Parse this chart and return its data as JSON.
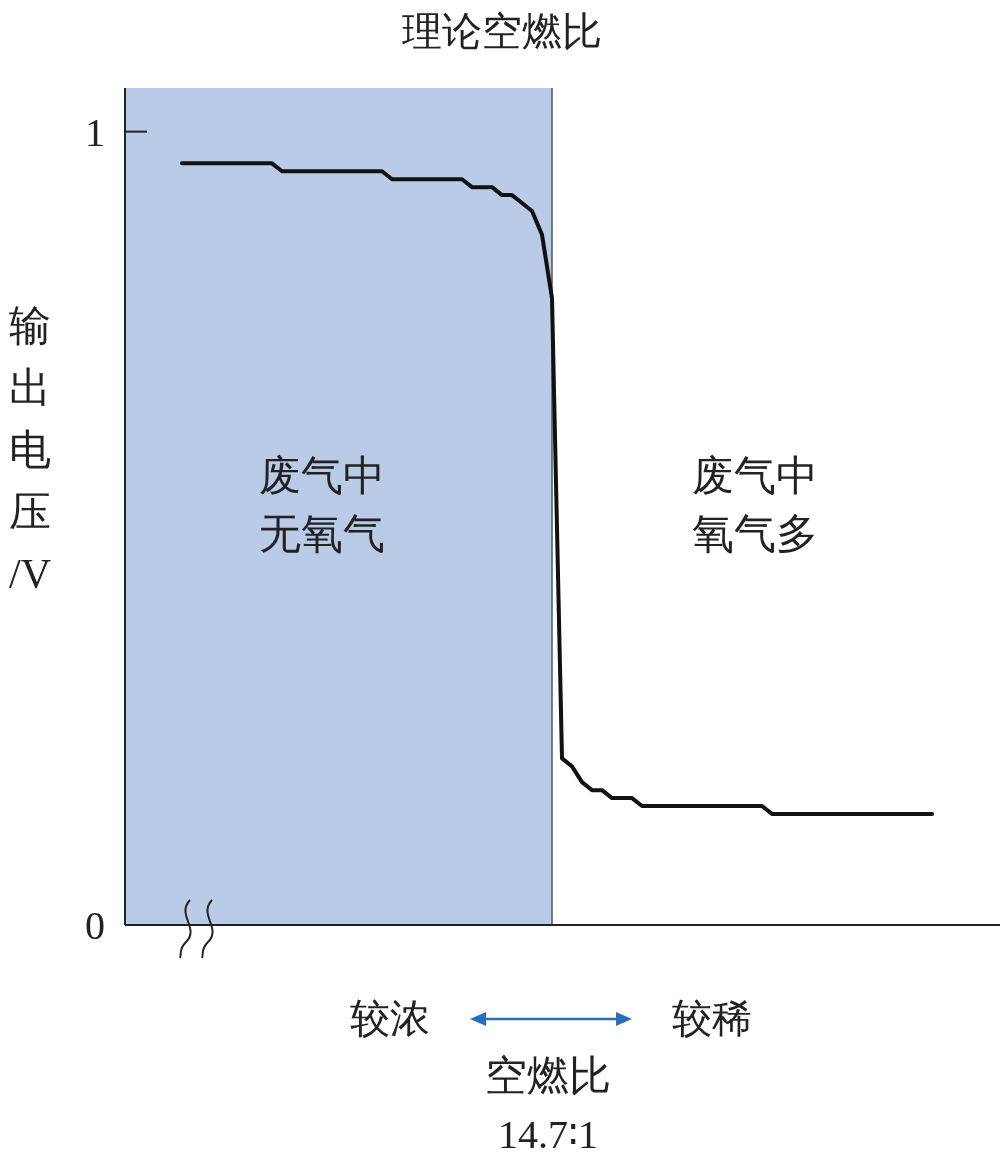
{
  "chart_data": {
    "type": "line",
    "xlabel": "空燃比",
    "ylabel": "输出电压/V",
    "categories": [
      null,
      null,
      null,
      null,
      null,
      null,
      null,
      null,
      null,
      null,
      null,
      null,
      null,
      null,
      null,
      null,
      null,
      null,
      null,
      null,
      null,
      null,
      null,
      null,
      null,
      null,
      null,
      null,
      null,
      null,
      null,
      null,
      null,
      null,
      null,
      null,
      null,
      null,
      null,
      null,
      null,
      null,
      null,
      null,
      null,
      null,
      null,
      null,
      null,
      null,
      null,
      null,
      null,
      null,
      null,
      null,
      null,
      null,
      null,
      null,
      null,
      null,
      null,
      null,
      null,
      null,
      null,
      null,
      null,
      null,
      null,
      null,
      null,
      null,
      null,
      null
    ],
    "values": [
      0.96,
      0.96,
      0.96,
      0.96,
      0.96,
      0.96,
      0.96,
      0.96,
      0.96,
      0.96,
      0.95,
      0.95,
      0.95,
      0.95,
      0.95,
      0.95,
      0.95,
      0.95,
      0.95,
      0.95,
      0.95,
      0.94,
      0.94,
      0.94,
      0.94,
      0.94,
      0.94,
      0.94,
      0.94,
      0.93,
      0.93,
      0.93,
      0.92,
      0.92,
      0.91,
      0.9,
      0.87,
      0.79,
      0.21,
      0.2,
      0.18,
      0.17,
      0.17,
      0.16,
      0.16,
      0.16,
      0.15,
      0.15,
      0.15,
      0.15,
      0.15,
      0.15,
      0.15,
      0.15,
      0.15,
      0.15,
      0.15,
      0.15,
      0.15,
      0.14,
      0.14,
      0.14,
      0.14,
      0.14,
      0.14,
      0.14,
      0.14,
      0.14,
      0.14,
      0.14,
      0.14,
      0.14,
      0.14,
      0.14,
      0.14,
      0.14
    ],
    "color": "#111111",
    "ylim": [
      0,
      1.055
    ],
    "yticks": [
      0,
      1
    ],
    "tick_labels": "y",
    "annotations": [
      "理论空燃比",
      "废气中无氧气",
      "废气中氧气多",
      "较浓",
      "较稀",
      "14.7∶1"
    ]
  }
}
